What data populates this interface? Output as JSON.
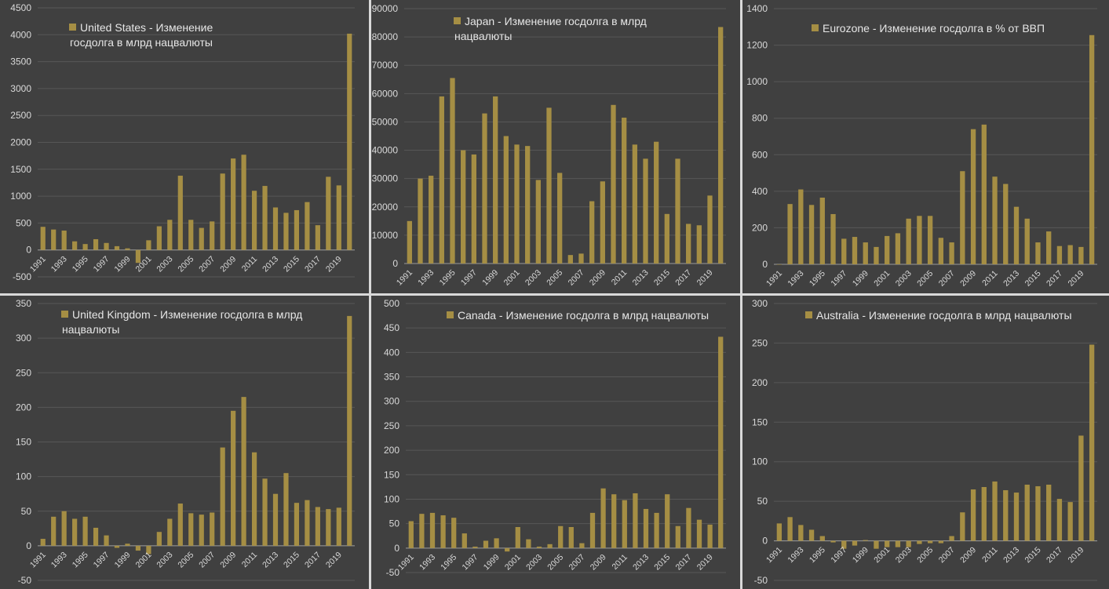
{
  "chart_data": [
    {
      "type": "bar",
      "legend": "United States - Изменение госдолга в млрд нацвалюты",
      "legend_position": "top-left",
      "color": "#a58e44",
      "x": [
        1991,
        1992,
        1993,
        1994,
        1995,
        1996,
        1997,
        1998,
        1999,
        2000,
        2001,
        2002,
        2003,
        2004,
        2005,
        2006,
        2007,
        2008,
        2009,
        2010,
        2011,
        2012,
        2013,
        2014,
        2015,
        2016,
        2017,
        2018,
        2019,
        2020
      ],
      "x_tick_labels": [
        "1991",
        "1993",
        "1995",
        "1997",
        "1999",
        "2001",
        "2003",
        "2005",
        "2007",
        "2009",
        "2011",
        "2013",
        "2015",
        "2017",
        "2019"
      ],
      "values": [
        430,
        380,
        360,
        160,
        110,
        200,
        130,
        70,
        30,
        -240,
        180,
        440,
        560,
        1380,
        560,
        410,
        530,
        1420,
        1700,
        1770,
        1100,
        1190,
        790,
        690,
        740,
        890,
        460,
        1360,
        1200,
        4020
      ],
      "ylim": [
        -500,
        4500
      ],
      "y_ticks": [
        -500,
        0,
        500,
        1000,
        1500,
        2000,
        2500,
        3000,
        3500,
        4000,
        4500
      ],
      "grid": true
    },
    {
      "type": "bar",
      "legend": "Japan - Изменение госдолга в млрд нацвалюты",
      "legend_position": "top-left",
      "color": "#a58e44",
      "x": [
        1991,
        1992,
        1993,
        1994,
        1995,
        1996,
        1997,
        1998,
        1999,
        2000,
        2001,
        2002,
        2003,
        2004,
        2005,
        2006,
        2007,
        2008,
        2009,
        2010,
        2011,
        2012,
        2013,
        2014,
        2015,
        2016,
        2017,
        2018,
        2019,
        2020
      ],
      "x_tick_labels": [
        "1991",
        "1993",
        "1995",
        "1997",
        "1999",
        "2001",
        "2003",
        "2005",
        "2007",
        "2009",
        "2011",
        "2013",
        "2015",
        "2017",
        "2019"
      ],
      "values": [
        15000,
        30000,
        31000,
        59000,
        65500,
        40000,
        38500,
        53000,
        59000,
        45000,
        42000,
        41500,
        29500,
        55000,
        32000,
        3000,
        3500,
        22000,
        29000,
        56000,
        51500,
        42000,
        37000,
        43000,
        17500,
        37000,
        14000,
        13500,
        24000,
        83500
      ],
      "ylim": [
        0,
        90000
      ],
      "y_ticks": [
        0,
        10000,
        20000,
        30000,
        40000,
        50000,
        60000,
        70000,
        80000,
        90000
      ],
      "grid": true
    },
    {
      "type": "bar",
      "legend": "Eurozone - Изменение госдолга в % от ВВП",
      "legend_position": "top-left",
      "color": "#a58e44",
      "x": [
        1991,
        1992,
        1993,
        1994,
        1995,
        1996,
        1997,
        1998,
        1999,
        2000,
        2001,
        2002,
        2003,
        2004,
        2005,
        2006,
        2007,
        2008,
        2009,
        2010,
        2011,
        2012,
        2013,
        2014,
        2015,
        2016,
        2017,
        2018,
        2019,
        2020
      ],
      "x_tick_labels": [
        "1991",
        "1993",
        "1995",
        "1997",
        "1999",
        "2001",
        "2003",
        "2005",
        "2007",
        "2009",
        "2011",
        "2013",
        "2015",
        "2017",
        "2019"
      ],
      "values": [
        0,
        330,
        410,
        325,
        365,
        275,
        140,
        150,
        120,
        95,
        155,
        170,
        250,
        265,
        265,
        145,
        120,
        510,
        740,
        765,
        480,
        440,
        315,
        250,
        120,
        180,
        100,
        105,
        95,
        1255
      ],
      "ylim": [
        0,
        1400
      ],
      "y_ticks": [
        0,
        200,
        400,
        600,
        800,
        1000,
        1200,
        1400
      ],
      "grid": true
    },
    {
      "type": "bar",
      "legend": "United Kingdom - Изменение госдолга в млрд нацвалюты",
      "legend_position": "top-left",
      "color": "#a58e44",
      "x": [
        1991,
        1992,
        1993,
        1994,
        1995,
        1996,
        1997,
        1998,
        1999,
        2000,
        2001,
        2002,
        2003,
        2004,
        2005,
        2006,
        2007,
        2008,
        2009,
        2010,
        2011,
        2012,
        2013,
        2014,
        2015,
        2016,
        2017,
        2018,
        2019,
        2020
      ],
      "x_tick_labels": [
        "1991",
        "1993",
        "1995",
        "1997",
        "1999",
        "2001",
        "2003",
        "2005",
        "2007",
        "2009",
        "2011",
        "2013",
        "2015",
        "2017",
        "2019"
      ],
      "values": [
        10,
        42,
        50,
        39,
        42,
        26,
        15,
        -3,
        3,
        -7,
        -12,
        20,
        39,
        61,
        47,
        45,
        48,
        142,
        195,
        215,
        135,
        97,
        75,
        105,
        62,
        66,
        56,
        53,
        55,
        332
      ],
      "ylim": [
        -50,
        350
      ],
      "y_ticks": [
        -50,
        0,
        50,
        100,
        150,
        200,
        250,
        300,
        350
      ],
      "grid": true
    },
    {
      "type": "bar",
      "legend": "Canada - Изменение госдолга в млрд нацвалюты",
      "legend_position": "top-left",
      "color": "#a58e44",
      "x": [
        1991,
        1992,
        1993,
        1994,
        1995,
        1996,
        1997,
        1998,
        1999,
        2000,
        2001,
        2002,
        2003,
        2004,
        2005,
        2006,
        2007,
        2008,
        2009,
        2010,
        2011,
        2012,
        2013,
        2014,
        2015,
        2016,
        2017,
        2018,
        2019,
        2020
      ],
      "x_tick_labels": [
        "1991",
        "1993",
        "1995",
        "1997",
        "1999",
        "2001",
        "2003",
        "2005",
        "2007",
        "2009",
        "2011",
        "2013",
        "2015",
        "2017",
        "2019"
      ],
      "values": [
        55,
        70,
        72,
        67,
        62,
        30,
        3,
        15,
        20,
        -7,
        43,
        18,
        3,
        8,
        45,
        43,
        10,
        72,
        122,
        110,
        98,
        112,
        80,
        72,
        110,
        45,
        82,
        58,
        48,
        432
      ],
      "ylim": [
        -50,
        500
      ],
      "y_ticks": [
        -50,
        0,
        50,
        100,
        150,
        200,
        250,
        300,
        350,
        400,
        450,
        500
      ],
      "grid": true
    },
    {
      "type": "bar",
      "legend": "Australia - Изменение госдолга в млрд нацвалюты",
      "legend_position": "top-left",
      "color": "#a58e44",
      "x": [
        1991,
        1992,
        1993,
        1994,
        1995,
        1996,
        1997,
        1998,
        1999,
        2000,
        2001,
        2002,
        2003,
        2004,
        2005,
        2006,
        2007,
        2008,
        2009,
        2010,
        2011,
        2012,
        2013,
        2014,
        2015,
        2016,
        2017,
        2018,
        2019,
        2020
      ],
      "x_tick_labels": [
        "1991",
        "1993",
        "1995",
        "1997",
        "1999",
        "2001",
        "2003",
        "2005",
        "2007",
        "2009",
        "2011",
        "2013",
        "2015",
        "2017",
        "2019"
      ],
      "values": [
        22,
        30,
        20,
        14,
        6,
        -2,
        -10,
        -6,
        1,
        -10,
        -8,
        -8,
        -8,
        -4,
        -3,
        -3,
        6,
        36,
        65,
        68,
        75,
        64,
        61,
        71,
        69,
        71,
        53,
        49,
        133,
        248
      ],
      "ylim": [
        -50,
        300
      ],
      "y_ticks": [
        -50,
        0,
        50,
        100,
        150,
        200,
        250,
        300
      ],
      "grid": true
    }
  ]
}
